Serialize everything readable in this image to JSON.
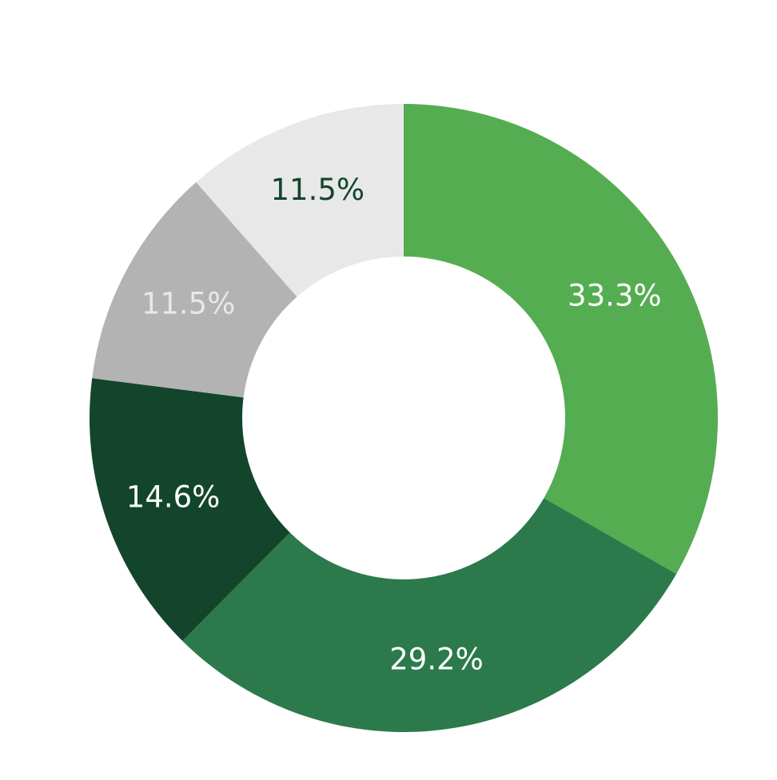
{
  "chart_data": {
    "type": "pie",
    "donut": true,
    "title": "",
    "legend": "none",
    "slices": [
      {
        "label": "33.3%",
        "value": 33.3,
        "color": "#55ad51",
        "text_color": "#ffffff"
      },
      {
        "label": "29.2%",
        "value": 29.2,
        "color": "#2c7a4b",
        "text_color": "#ffffff"
      },
      {
        "label": "14.6%",
        "value": 14.6,
        "color": "#13452c",
        "text_color": "#ffffff"
      },
      {
        "label": "11.5%",
        "value": 11.5,
        "color": "#b3b3b3",
        "text_color": "#e8e8e8"
      },
      {
        "label": "11.5%",
        "value": 11.5,
        "color": "#e8e8e8",
        "text_color": "#13452c"
      }
    ]
  }
}
